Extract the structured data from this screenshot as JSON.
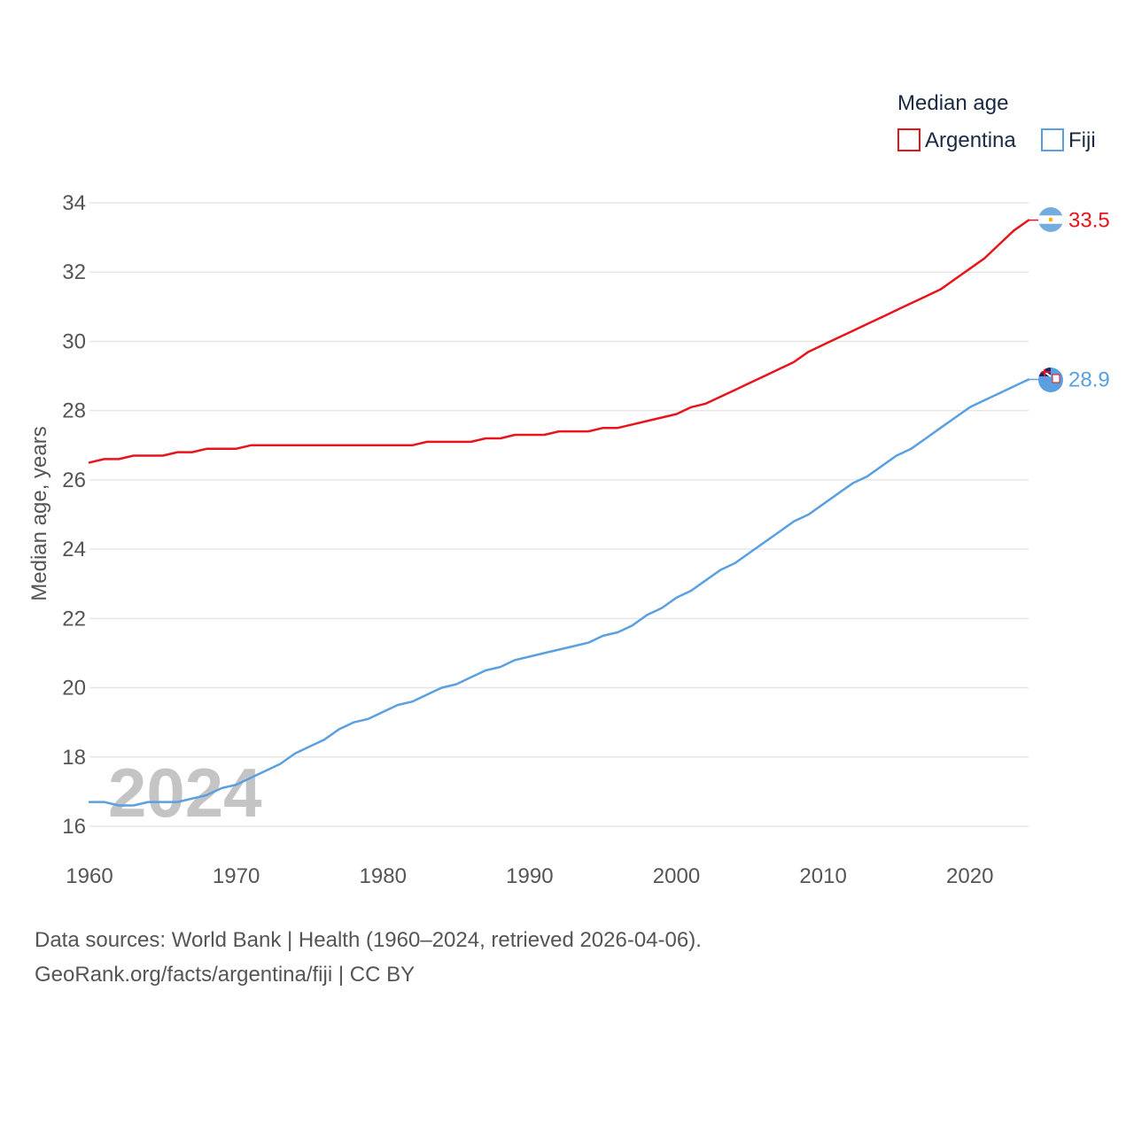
{
  "colors": {
    "argentina": "#e8131b",
    "fiji": "#5aa0e0"
  },
  "chart_data": {
    "type": "line",
    "title": "",
    "xlabel": "",
    "ylabel": "Median age, years",
    "xlim": [
      1960,
      2024
    ],
    "ylim": [
      16,
      34
    ],
    "x_ticks": [
      "1960",
      "1970",
      "1980",
      "1990",
      "2000",
      "2010",
      "2020"
    ],
    "y_ticks": [
      "16",
      "18",
      "20",
      "22",
      "24",
      "26",
      "28",
      "30",
      "32",
      "34"
    ],
    "legend": {
      "title": "Median age",
      "position": "top-right"
    },
    "watermark": "2024",
    "x": [
      1960,
      1961,
      1962,
      1963,
      1964,
      1965,
      1966,
      1967,
      1968,
      1969,
      1970,
      1971,
      1972,
      1973,
      1974,
      1975,
      1976,
      1977,
      1978,
      1979,
      1980,
      1981,
      1982,
      1983,
      1984,
      1985,
      1986,
      1987,
      1988,
      1989,
      1990,
      1991,
      1992,
      1993,
      1994,
      1995,
      1996,
      1997,
      1998,
      1999,
      2000,
      2001,
      2002,
      2003,
      2004,
      2005,
      2006,
      2007,
      2008,
      2009,
      2010,
      2011,
      2012,
      2013,
      2014,
      2015,
      2016,
      2017,
      2018,
      2019,
      2020,
      2021,
      2022,
      2023,
      2024
    ],
    "series": [
      {
        "name": "Argentina",
        "color_key": "argentina",
        "end_label": "33.5",
        "values": [
          26.5,
          26.6,
          26.6,
          26.7,
          26.7,
          26.7,
          26.8,
          26.8,
          26.9,
          26.9,
          26.9,
          27.0,
          27.0,
          27.0,
          27.0,
          27.0,
          27.0,
          27.0,
          27.0,
          27.0,
          27.0,
          27.0,
          27.0,
          27.1,
          27.1,
          27.1,
          27.1,
          27.2,
          27.2,
          27.3,
          27.3,
          27.3,
          27.4,
          27.4,
          27.4,
          27.5,
          27.5,
          27.6,
          27.7,
          27.8,
          27.9,
          28.1,
          28.2,
          28.4,
          28.6,
          28.8,
          29.0,
          29.2,
          29.4,
          29.7,
          29.9,
          30.1,
          30.3,
          30.5,
          30.7,
          30.9,
          31.1,
          31.3,
          31.5,
          31.8,
          32.1,
          32.4,
          32.8,
          33.2,
          33.5
        ]
      },
      {
        "name": "Fiji",
        "color_key": "fiji",
        "end_label": "28.9",
        "values": [
          16.7,
          16.7,
          16.6,
          16.6,
          16.7,
          16.7,
          16.7,
          16.8,
          16.9,
          17.1,
          17.2,
          17.4,
          17.6,
          17.8,
          18.1,
          18.3,
          18.5,
          18.8,
          19.0,
          19.1,
          19.3,
          19.5,
          19.6,
          19.8,
          20.0,
          20.1,
          20.3,
          20.5,
          20.6,
          20.8,
          20.9,
          21.0,
          21.1,
          21.2,
          21.3,
          21.5,
          21.6,
          21.8,
          22.1,
          22.3,
          22.6,
          22.8,
          23.1,
          23.4,
          23.6,
          23.9,
          24.2,
          24.5,
          24.8,
          25.0,
          25.3,
          25.6,
          25.9,
          26.1,
          26.4,
          26.7,
          26.9,
          27.2,
          27.5,
          27.8,
          28.1,
          28.3,
          28.5,
          28.7,
          28.9
        ]
      }
    ]
  },
  "footer": {
    "source_line": "Data sources: World Bank | Health (1960–2024, retrieved 2026-04-06).",
    "attribution_line": "GeoRank.org/facts/argentina/fiji | CC BY"
  }
}
